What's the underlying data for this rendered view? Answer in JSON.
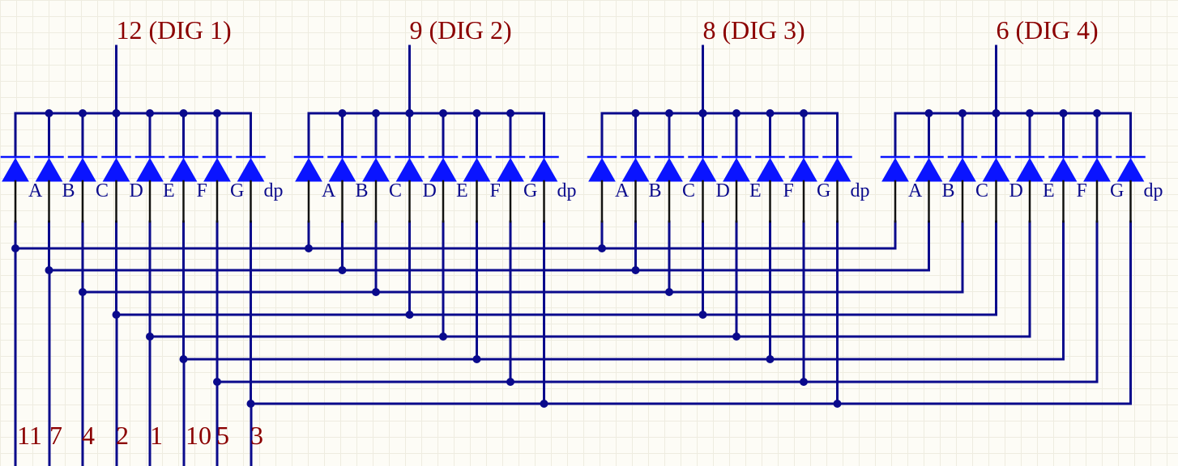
{
  "colors": {
    "wire": "#0a0a8c",
    "lead": "#111111",
    "diode_fill": "#0a14ff",
    "segment_label": "#0a0a8c",
    "pin_label": "#8b0000",
    "background": "#fdfcf6"
  },
  "digits": [
    {
      "title": "12 (DIG 1)"
    },
    {
      "title": "9 (DIG 2)"
    },
    {
      "title": "8 (DIG 3)"
    },
    {
      "title": "6 (DIG 4)"
    }
  ],
  "segment_labels": [
    "A",
    "B",
    "C",
    "D",
    "E",
    "F",
    "G",
    "dp"
  ],
  "segment_pins": [
    "11",
    "7",
    "4",
    "2",
    "1",
    "10",
    "5",
    "3"
  ]
}
